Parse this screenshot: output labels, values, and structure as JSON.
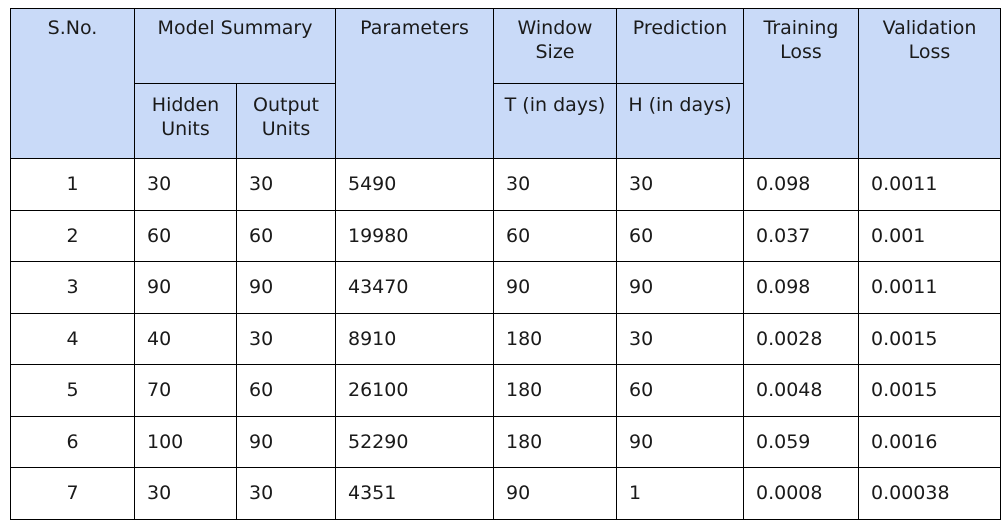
{
  "table": {
    "headers": {
      "sno": "S.No.",
      "model_summary": "Model Summary",
      "hidden_units": "Hidden\nUnits",
      "output_units": "Output\nUnits",
      "parameters": "Parameters",
      "window_size": "Window\nSize",
      "t_days": "T (in days)",
      "prediction": "Prediction",
      "h_days": "H (in days)",
      "training_loss": "Training\nLoss",
      "validation_loss": "Validation\nLoss"
    },
    "rows": [
      {
        "sno": "1",
        "hidden": "30",
        "output": "30",
        "params": "5490",
        "t": "30",
        "h": "30",
        "train": "0.098",
        "val": "0.0011"
      },
      {
        "sno": "2",
        "hidden": "60",
        "output": "60",
        "params": "19980",
        "t": "60",
        "h": "60",
        "train": "0.037",
        "val": "0.001"
      },
      {
        "sno": "3",
        "hidden": "90",
        "output": "90",
        "params": "43470",
        "t": "90",
        "h": "90",
        "train": "0.098",
        "val": "0.0011"
      },
      {
        "sno": "4",
        "hidden": "40",
        "output": "30",
        "params": "8910",
        "t": "180",
        "h": "30",
        "train": "0.0028",
        "val": "0.0015"
      },
      {
        "sno": "5",
        "hidden": "70",
        "output": "60",
        "params": "26100",
        "t": "180",
        "h": "60",
        "train": "0.0048",
        "val": "0.0015"
      },
      {
        "sno": "6",
        "hidden": "100",
        "output": "90",
        "params": "52290",
        "t": "180",
        "h": "90",
        "train": "0.059",
        "val": "0.0016"
      },
      {
        "sno": "7",
        "hidden": "30",
        "output": "30",
        "params": "4351",
        "t": "90",
        "h": "1",
        "train": "0.0008",
        "val": "0.00038"
      }
    ]
  },
  "colors": {
    "header_background": "#c9daf8",
    "border": "#000000"
  }
}
